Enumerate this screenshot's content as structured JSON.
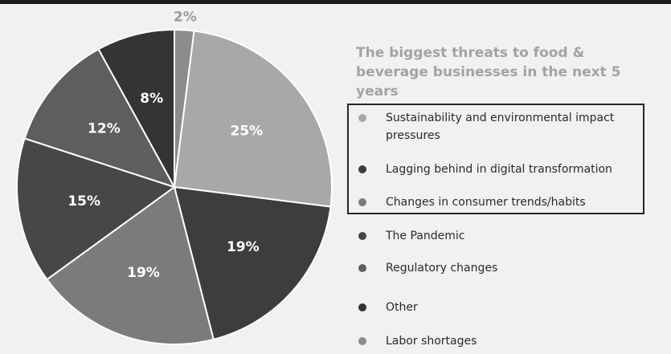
{
  "chart_data": {
    "type": "pie",
    "title": "The biggest threats to food & beverage businesses in the next 5 years",
    "slices": [
      {
        "label": "Labor shortages",
        "value": 2,
        "display": "2%",
        "color": "#8c8c8c"
      },
      {
        "label": "Sustainability and environmental impact pressures",
        "value": 25,
        "display": "25%",
        "color": "#a8a8a8"
      },
      {
        "label": "Lagging behind in digital transformation",
        "value": 19,
        "display": "19%",
        "color": "#3d3d3d"
      },
      {
        "label": "Changes in consumer trends/habits",
        "value": 19,
        "display": "19%",
        "color": "#7b7b7b"
      },
      {
        "label": "The Pandemic",
        "value": 15,
        "display": "15%",
        "color": "#474747"
      },
      {
        "label": "Regulatory changes",
        "value": 12,
        "display": "12%",
        "color": "#5e5e5e"
      },
      {
        "label": "Other",
        "value": 8,
        "display": "8%",
        "color": "#343434"
      }
    ],
    "legend": [
      {
        "label": "Sustainability and environmental impact pressures",
        "color": "#a8a8a8"
      },
      {
        "label": "Lagging behind in digital transformation",
        "color": "#3d3d3d"
      },
      {
        "label": "Changes in consumer trends/habits",
        "color": "#7b7b7b"
      },
      {
        "label": "The Pandemic",
        "color": "#474747"
      },
      {
        "label": "Regulatory changes",
        "color": "#5e5e5e"
      },
      {
        "label": "Other",
        "color": "#343434"
      },
      {
        "label": "Labor shortages",
        "color": "#8c8c8c"
      }
    ],
    "legend_placement": "right",
    "highlighted_legend_items": 3
  }
}
